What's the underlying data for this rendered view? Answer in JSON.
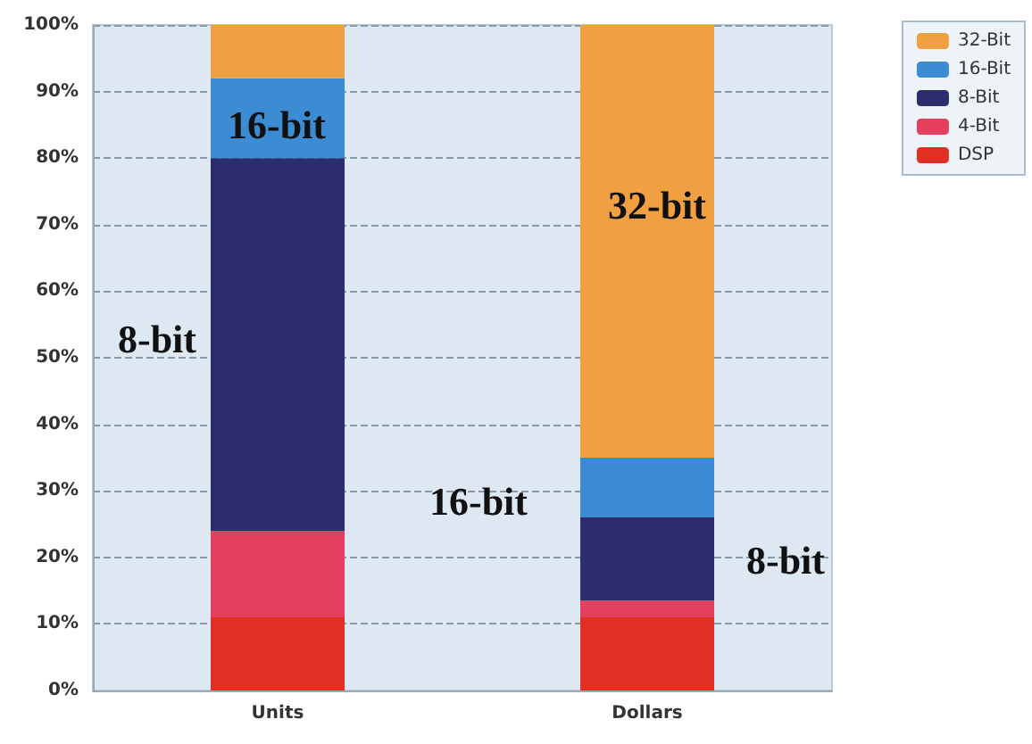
{
  "chart_data": {
    "type": "bar",
    "stacked": true,
    "categories": [
      "Units",
      "Dollars"
    ],
    "series": [
      {
        "name": "DSP",
        "color": "#e03024",
        "values": [
          11,
          11
        ]
      },
      {
        "name": "4-Bit",
        "color": "#e2405c",
        "values": [
          13,
          2.5
        ]
      },
      {
        "name": "8-Bit",
        "color": "#2b2d6c",
        "values": [
          56,
          12.5
        ]
      },
      {
        "name": "16-Bit",
        "color": "#3c8cd4",
        "values": [
          12,
          9
        ]
      },
      {
        "name": "32-Bit",
        "color": "#f0a040",
        "values": [
          8,
          65
        ]
      }
    ],
    "ylim": [
      0,
      100
    ],
    "yticks": [
      {
        "value": 0,
        "label": "0%"
      },
      {
        "value": 10,
        "label": "10%"
      },
      {
        "value": 20,
        "label": "20%"
      },
      {
        "value": 30,
        "label": "30%"
      },
      {
        "value": 40,
        "label": "40%"
      },
      {
        "value": 50,
        "label": "50%"
      },
      {
        "value": 60,
        "label": "60%"
      },
      {
        "value": 70,
        "label": "70%"
      },
      {
        "value": 80,
        "label": "80%"
      },
      {
        "value": 90,
        "label": "90%"
      },
      {
        "value": 100,
        "label": "100%"
      }
    ],
    "grid": "y",
    "legend": "top right",
    "annotations": [
      "16-bit",
      "8-bit",
      "32-bit",
      "16-bit",
      "8-bit"
    ]
  }
}
